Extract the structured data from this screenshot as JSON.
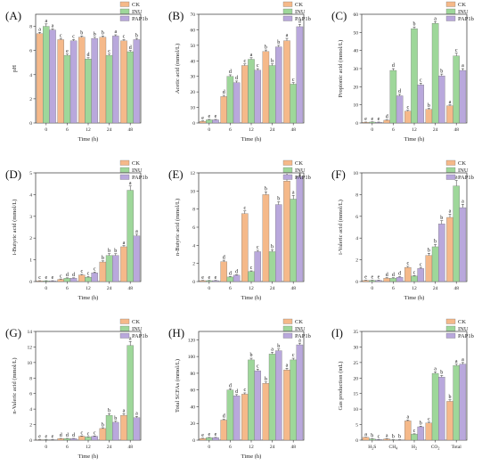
{
  "colors": {
    "CK": "#f5b98a",
    "INU": "#9ed79a",
    "PAP1b": "#b9a8dc"
  },
  "chart_data": [
    {
      "letter": "(A)",
      "type": "bar",
      "xlabel": "Time (h)",
      "ylabel": "pH",
      "categories": [
        "0",
        "6",
        "12",
        "24",
        "48"
      ],
      "ylim": [
        0,
        9
      ],
      "yticks": [
        0,
        2,
        4,
        6,
        8
      ],
      "legend": [
        "CK",
        "INU",
        "PAP1b"
      ],
      "series": [
        {
          "name": "CK",
          "values": [
            7.4,
            6.9,
            7.1,
            7.1,
            6.8
          ],
          "errors": [
            0.1,
            0.1,
            0.1,
            0.1,
            0.1
          ],
          "labels": [
            "a",
            "c",
            "b",
            "b",
            "c"
          ]
        },
        {
          "name": "INU",
          "values": [
            8.0,
            5.6,
            5.3,
            5.6,
            5.9
          ],
          "errors": [
            0.2,
            0.1,
            0.1,
            0.1,
            0.1
          ],
          "labels": [
            "a",
            "e",
            "d",
            "c",
            "d"
          ]
        },
        {
          "name": "PAP1b",
          "values": [
            7.7,
            6.8,
            7.0,
            7.2,
            6.9
          ],
          "errors": [
            0.1,
            0.1,
            0.1,
            0.1,
            0.1
          ],
          "labels": [
            "a",
            "c",
            "b",
            "a",
            "b"
          ]
        }
      ]
    },
    {
      "letter": "(B)",
      "type": "bar",
      "xlabel": "Time (h)",
      "ylabel": "Acetic acid (mmol/L)",
      "categories": [
        "0",
        "6",
        "12",
        "24",
        "48"
      ],
      "ylim": [
        0,
        70
      ],
      "yticks": [
        0,
        10,
        20,
        30,
        40,
        50,
        60,
        70
      ],
      "legend": [
        "CK",
        "INU",
        "PAP1b"
      ],
      "series": [
        {
          "name": "CK",
          "values": [
            1,
            17,
            37,
            46,
            53
          ],
          "errors": [
            0.3,
            0.8,
            1,
            1,
            1.5
          ],
          "labels": [
            "e",
            "d",
            "c",
            "b",
            "a"
          ]
        },
        {
          "name": "INU",
          "values": [
            2,
            30,
            41,
            37,
            25
          ],
          "errors": [
            0.3,
            1,
            1,
            1,
            1
          ],
          "labels": [
            "e",
            "d",
            "a",
            "b",
            "c"
          ]
        },
        {
          "name": "PAP1b",
          "values": [
            2,
            26,
            34,
            49,
            62
          ],
          "errors": [
            0.3,
            1,
            1,
            1,
            1.5
          ],
          "labels": [
            "e",
            "d",
            "c",
            "b",
            "a"
          ]
        }
      ]
    },
    {
      "letter": "(C)",
      "type": "bar",
      "xlabel": "Time (h)",
      "ylabel": "Propionic acid (mmol/L)",
      "categories": [
        "0",
        "6",
        "12",
        "24",
        "48"
      ],
      "ylim": [
        0,
        60
      ],
      "yticks": [
        0,
        10,
        20,
        30,
        40,
        50,
        60
      ],
      "legend": [
        "CK",
        "INU",
        "PAP1b"
      ],
      "series": [
        {
          "name": "CK",
          "values": [
            0.4,
            1.5,
            6.5,
            7.5,
            9.5
          ],
          "errors": [
            0.1,
            0.2,
            0.5,
            0.5,
            0.5
          ],
          "labels": [
            "e",
            "d",
            "c",
            "b",
            "a"
          ]
        },
        {
          "name": "INU",
          "values": [
            0.5,
            29,
            52,
            55,
            37
          ],
          "errors": [
            0.1,
            1,
            1,
            1,
            1.5
          ],
          "labels": [
            "e",
            "d",
            "b",
            "a",
            "c"
          ]
        },
        {
          "name": "PAP1b",
          "values": [
            0.4,
            15,
            21,
            26,
            29
          ],
          "errors": [
            0.1,
            0.8,
            1,
            1,
            1
          ],
          "labels": [
            "e",
            "d",
            "c",
            "b",
            "a"
          ]
        }
      ]
    },
    {
      "letter": "(D)",
      "type": "bar",
      "xlabel": "Time (h)",
      "ylabel": "i-Butyric acid (mmol/L)",
      "categories": [
        "0",
        "6",
        "12",
        "24",
        "48"
      ],
      "ylim": [
        0,
        5
      ],
      "yticks": [
        0,
        1,
        2,
        3,
        4,
        5
      ],
      "legend": [
        "CK",
        "INU",
        "PAP1b"
      ],
      "series": [
        {
          "name": "CK",
          "values": [
            0.03,
            0.1,
            0.3,
            0.9,
            1.6
          ],
          "errors": [
            0.01,
            0.02,
            0.03,
            0.05,
            0.05
          ],
          "labels": [
            "c",
            "c",
            "c",
            "b",
            "a"
          ]
        },
        {
          "name": "INU",
          "values": [
            0.03,
            0.15,
            0.2,
            1.2,
            4.2
          ],
          "errors": [
            0.01,
            0.02,
            0.03,
            0.08,
            0.2
          ],
          "labels": [
            "e",
            "d",
            "c",
            "b",
            "a"
          ]
        },
        {
          "name": "PAP1b",
          "values": [
            0.03,
            0.15,
            0.4,
            1.2,
            2.1
          ],
          "errors": [
            0.01,
            0.02,
            0.04,
            0.08,
            0.08
          ],
          "labels": [
            "e",
            "d",
            "c",
            "b",
            "a"
          ]
        }
      ]
    },
    {
      "letter": "(E)",
      "type": "bar",
      "xlabel": "Time (h)",
      "ylabel": "n-Butyric acid (mmol/L)",
      "categories": [
        "0",
        "6",
        "12",
        "24",
        "48"
      ],
      "ylim": [
        0,
        12
      ],
      "yticks": [
        0,
        2,
        4,
        6,
        8,
        10,
        12
      ],
      "legend": [
        "CK",
        "INU",
        "PAP1b"
      ],
      "series": [
        {
          "name": "CK",
          "values": [
            0.1,
            2.2,
            7.5,
            9.6,
            11.1
          ],
          "errors": [
            0.02,
            0.15,
            0.3,
            0.3,
            0.4
          ],
          "labels": [
            "e",
            "d",
            "c",
            "b",
            "a"
          ]
        },
        {
          "name": "INU",
          "values": [
            0.1,
            0.5,
            1.1,
            3.3,
            9.1
          ],
          "errors": [
            0.02,
            0.05,
            0.08,
            0.2,
            0.4
          ],
          "labels": [
            "e",
            "d",
            "c",
            "b",
            "a"
          ]
        },
        {
          "name": "PAP1b",
          "values": [
            0.1,
            0.7,
            3.3,
            8.5,
            11.6
          ],
          "errors": [
            0.02,
            0.05,
            0.15,
            0.3,
            0.4
          ],
          "labels": [
            "e",
            "d",
            "c",
            "b",
            "a"
          ]
        }
      ]
    },
    {
      "letter": "(F)",
      "type": "bar",
      "xlabel": "Time (h)",
      "ylabel": "i-Valeric acid (mmol/L)",
      "categories": [
        "0",
        "6",
        "12",
        "24",
        "48"
      ],
      "ylim": [
        0,
        10
      ],
      "yticks": [
        0,
        2,
        4,
        6,
        8,
        10
      ],
      "legend": [
        "CK",
        "INU",
        "PAP1b"
      ],
      "series": [
        {
          "name": "CK",
          "values": [
            0.1,
            0.3,
            1.3,
            2.4,
            5.9
          ],
          "errors": [
            0.02,
            0.05,
            0.1,
            0.2,
            0.3
          ],
          "labels": [
            "e",
            "d",
            "c",
            "b",
            "a"
          ]
        },
        {
          "name": "INU",
          "values": [
            0.1,
            0.3,
            0.5,
            3.2,
            8.8
          ],
          "errors": [
            0.02,
            0.05,
            0.05,
            0.2,
            0.5
          ],
          "labels": [
            "e",
            "d",
            "c",
            "b",
            "a"
          ]
        },
        {
          "name": "PAP1b",
          "values": [
            0.1,
            0.4,
            1.2,
            5.3,
            6.8
          ],
          "errors": [
            0.02,
            0.05,
            0.1,
            0.3,
            0.3
          ],
          "labels": [
            "e",
            "d",
            "c",
            "b",
            "a"
          ]
        }
      ]
    },
    {
      "letter": "(G)",
      "type": "bar",
      "xlabel": "Time (h)",
      "ylabel": "n-Valeric acid (mmol/L)",
      "categories": [
        "0",
        "6",
        "12",
        "24",
        "48"
      ],
      "ylim": [
        0,
        14
      ],
      "yticks": [
        0,
        2,
        4,
        6,
        8,
        10,
        12,
        14
      ],
      "legend": [
        "CK",
        "INU",
        "PAP1b"
      ],
      "series": [
        {
          "name": "CK",
          "values": [
            0.05,
            0.2,
            0.5,
            1.5,
            3.2
          ],
          "errors": [
            0.01,
            0.03,
            0.05,
            0.1,
            0.2
          ],
          "labels": [
            "e",
            "d",
            "c",
            "b",
            "a"
          ]
        },
        {
          "name": "INU",
          "values": [
            0.05,
            0.2,
            0.4,
            3.2,
            12.2
          ],
          "errors": [
            0.01,
            0.03,
            0.05,
            0.2,
            0.5
          ],
          "labels": [
            "e",
            "d",
            "c",
            "b",
            "a"
          ]
        },
        {
          "name": "PAP1b",
          "values": [
            0.05,
            0.2,
            0.5,
            2.3,
            2.9
          ],
          "errors": [
            0.01,
            0.03,
            0.05,
            0.15,
            0.15
          ],
          "labels": [
            "e",
            "d",
            "c",
            "b",
            "a"
          ]
        }
      ]
    },
    {
      "letter": "(H)",
      "type": "bar",
      "xlabel": "Time (h)",
      "ylabel": "Total SCFAs (mmol/L)",
      "categories": [
        "0",
        "6",
        "12",
        "24",
        "48"
      ],
      "ylim": [
        0,
        130
      ],
      "yticks": [
        0,
        20,
        40,
        60,
        80,
        100,
        120
      ],
      "legend": [
        "CK",
        "INU",
        "PAP1b"
      ],
      "series": [
        {
          "name": "CK",
          "values": [
            2,
            24,
            55,
            68,
            84
          ],
          "errors": [
            0.3,
            1,
            1.5,
            1.5,
            2
          ],
          "labels": [
            "e",
            "d",
            "c",
            "b",
            "a"
          ]
        },
        {
          "name": "INU",
          "values": [
            3,
            60,
            96,
            103,
            96
          ],
          "errors": [
            0.3,
            1.5,
            2,
            2,
            2
          ],
          "labels": [
            "e",
            "d",
            "b",
            "a",
            "c"
          ]
        },
        {
          "name": "PAP1b",
          "values": [
            3,
            53,
            83,
            107,
            114
          ],
          "errors": [
            0.3,
            1.5,
            2,
            2,
            2
          ],
          "labels": [
            "e",
            "d",
            "c",
            "b",
            "a"
          ]
        }
      ]
    },
    {
      "letter": "(I)",
      "type": "bar",
      "xlabel": "",
      "ylabel": "Gas production (mL)",
      "categories": [
        "H2S",
        "CH4",
        "H2",
        "CO2",
        "Total"
      ],
      "ylim": [
        0,
        35
      ],
      "yticks": [
        0,
        5,
        10,
        15,
        20,
        25,
        30,
        35
      ],
      "legend": [
        "CK",
        "INU",
        "PAP1b"
      ],
      "series": [
        {
          "name": "CK",
          "values": [
            0.9,
            0.4,
            6.2,
            5.5,
            12.5
          ],
          "errors": [
            0.05,
            0.05,
            0.3,
            0.3,
            0.5
          ],
          "labels": [
            "a",
            "a",
            "a",
            "c",
            "b"
          ]
        },
        {
          "name": "INU",
          "values": [
            0.4,
            0.1,
            1.9,
            21.5,
            24.0
          ],
          "errors": [
            0.05,
            0.03,
            0.15,
            0.5,
            0.5
          ],
          "labels": [
            "b",
            "b",
            "c",
            "a",
            "a"
          ]
        },
        {
          "name": "PAP1b",
          "values": [
            0.2,
            0.1,
            4.3,
            20.3,
            24.5
          ],
          "errors": [
            0.03,
            0.03,
            0.2,
            0.5,
            0.5
          ],
          "labels": [
            "c",
            "b",
            "b",
            "b",
            "a"
          ]
        }
      ]
    }
  ]
}
